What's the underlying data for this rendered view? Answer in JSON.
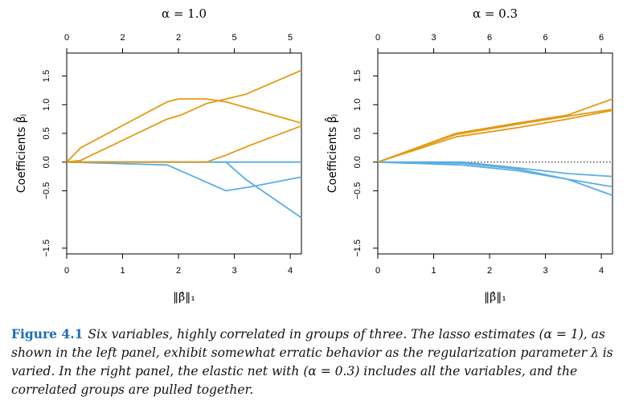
{
  "figure": {
    "label": "Figure 4.1",
    "caption": "Six variables, highly correlated in groups of three. The lasso estimates (α = 1), as shown in the left panel, exhibit somewhat erratic behavior as the regularization parameter λ is varied. In the right panel, the elastic net with (α = 0.3) includes all the variables, and the correlated groups are pulled together."
  },
  "colors": {
    "orange": "#e39a16",
    "blue": "#5aaee2"
  },
  "chart_data": [
    {
      "type": "line",
      "title": "α = 1.0",
      "xlabel": "‖β̂‖₁",
      "ylabel": "Coefficients β̂ⱼ",
      "xlim": [
        0,
        4.2
      ],
      "ylim": [
        -1.6,
        1.9
      ],
      "x_ticks": [
        0,
        1,
        2,
        3,
        4
      ],
      "y_ticks": [
        -1.5,
        -0.5,
        0.0,
        0.5,
        1.0,
        1.5
      ],
      "y_tick_labels": [
        "−1.5",
        "−0.5",
        "0.0",
        "0.5",
        "1.0",
        "1.5"
      ],
      "top_ticks": [
        0,
        1,
        2,
        3,
        4
      ],
      "top_tick_labels": [
        "0",
        "2",
        "2",
        "5",
        "5"
      ],
      "series": [
        {
          "color": "orange",
          "x": [
            0,
            0.25,
            1.8,
            2.0,
            2.5,
            2.85,
            4.2
          ],
          "y": [
            0,
            0.25,
            1.05,
            1.1,
            1.1,
            1.05,
            0.68
          ]
        },
        {
          "color": "orange",
          "x": [
            0,
            0.25,
            1.8,
            2.05,
            2.5,
            3.2,
            4.2
          ],
          "y": [
            0,
            0.03,
            0.75,
            0.82,
            1.02,
            1.18,
            1.6
          ]
        },
        {
          "color": "orange",
          "x": [
            0,
            2.5,
            2.85,
            3.3,
            4.2
          ],
          "y": [
            0,
            0,
            0.12,
            0.3,
            0.63
          ]
        },
        {
          "color": "blue",
          "x": [
            0,
            1.8,
            2.85,
            3.3,
            4.2
          ],
          "y": [
            0,
            -0.05,
            -0.5,
            -0.43,
            -0.26
          ]
        },
        {
          "color": "blue",
          "x": [
            0,
            2.85,
            3.2,
            4.2
          ],
          "y": [
            0,
            0,
            -0.3,
            -0.97
          ]
        },
        {
          "color": "blue",
          "x": [
            0,
            1.8,
            4.2
          ],
          "y": [
            0,
            0,
            0
          ]
        }
      ]
    },
    {
      "type": "line",
      "title": "α = 0.3",
      "xlabel": "‖β̂‖₁",
      "ylabel": "Coefficients β̂ⱼ",
      "xlim": [
        0,
        4.2
      ],
      "ylim": [
        -1.6,
        1.9
      ],
      "x_ticks": [
        0,
        1,
        2,
        3,
        4
      ],
      "y_ticks": [
        -1.5,
        -0.5,
        0.0,
        0.5,
        1.0,
        1.5
      ],
      "y_tick_labels": [
        "−1.5",
        "−0.5",
        "0.0",
        "0.5",
        "1.0",
        "1.5"
      ],
      "top_ticks": [
        0,
        1,
        2,
        3,
        4
      ],
      "top_tick_labels": [
        "0",
        "3",
        "6",
        "6",
        "6"
      ],
      "series": [
        {
          "color": "orange",
          "x": [
            0,
            1.4,
            2.5,
            3.4,
            4.2
          ],
          "y": [
            0,
            0.5,
            0.68,
            0.82,
            1.1
          ]
        },
        {
          "color": "orange",
          "x": [
            0,
            1.4,
            2.5,
            3.4,
            4.2
          ],
          "y": [
            0,
            0.48,
            0.66,
            0.8,
            0.92
          ]
        },
        {
          "color": "orange",
          "x": [
            0,
            1.4,
            2.5,
            3.4,
            4.2
          ],
          "y": [
            0,
            0.44,
            0.6,
            0.75,
            0.9
          ]
        },
        {
          "color": "blue",
          "x": [
            0,
            1.5,
            2.5,
            3.4,
            4.2
          ],
          "y": [
            0,
            0,
            -0.1,
            -0.2,
            -0.25
          ]
        },
        {
          "color": "blue",
          "x": [
            0,
            1.5,
            2.5,
            3.4,
            4.2
          ],
          "y": [
            0,
            -0.05,
            -0.15,
            -0.3,
            -0.43
          ]
        },
        {
          "color": "blue",
          "x": [
            0,
            1.5,
            2.5,
            3.4,
            4.2
          ],
          "y": [
            0,
            -0.02,
            -0.12,
            -0.3,
            -0.58
          ]
        }
      ]
    }
  ]
}
